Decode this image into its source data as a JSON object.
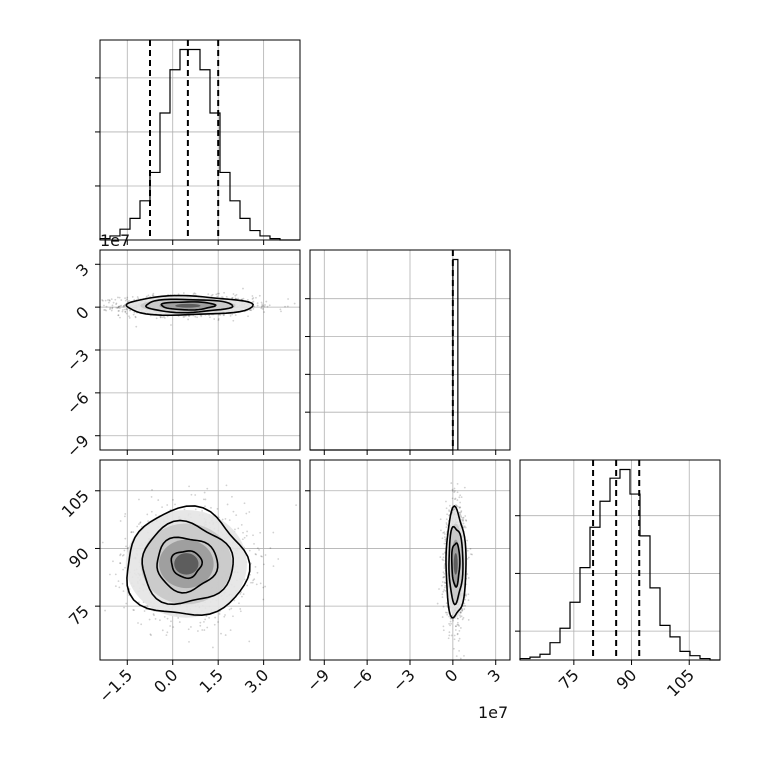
{
  "chart_data": {
    "type": "corner",
    "style": {
      "grid": true,
      "line_color": "#000000",
      "grid_color": "#b0b0b0",
      "point_color": "#000000"
    },
    "parameters": [
      {
        "index": 0,
        "range": [
          -24000000.0,
          42000000.0
        ],
        "offset_label": "1e7"
      },
      {
        "index": 1,
        "range": [
          -100000000.0,
          40000000.0
        ],
        "offset_label": "1e7"
      },
      {
        "index": 2,
        "range": [
          61,
          113
        ],
        "offset_label": ""
      }
    ],
    "panels": [
      {
        "id": "hist-0",
        "type": "histogram",
        "parameter": 0,
        "bins": [
          -24000000.0,
          -20700000.0,
          -17400000.0,
          -14100000.0,
          -10800000.0,
          -7500000.0,
          -4200000.0,
          -900000.0,
          2400000.0,
          5700000.0,
          9000000.0,
          12300000.0,
          15600000.0,
          18900000.0,
          22200000.0,
          25500000.0,
          28800000.0,
          32100000.0,
          35400000.0,
          38700000.0,
          42000000.0
        ],
        "counts": [
          1,
          3,
          8,
          16,
          29,
          50,
          94,
          126,
          141,
          141,
          126,
          94,
          50,
          29,
          16,
          7,
          3,
          1,
          0,
          0
        ],
        "quantiles": [
          -7500000.0,
          5000000.0,
          15000000.0
        ],
        "y_ticks": [
          40,
          80,
          120
        ],
        "x_ticks": [
          -15000000.0,
          0,
          15000000.0,
          30000000.0
        ],
        "y_tick_labels": [],
        "x_tick_labels": []
      },
      {
        "id": "hist-1",
        "type": "histogram",
        "parameter": 1,
        "bins": [
          -100000000.0,
          0,
          3500000.0
        ],
        "counts": [
          0,
          141
        ],
        "quantiles": [
          0.0
        ],
        "y_ticks": [
          28,
          56,
          84,
          112
        ],
        "x_ticks": [
          -90000000.0,
          -60000000.0,
          -30000000.0,
          0,
          30000000.0
        ],
        "y_tick_labels": [],
        "x_tick_labels": []
      },
      {
        "id": "hist-2",
        "type": "histogram",
        "parameter": 2,
        "bins": [
          61,
          63.6,
          66.2,
          68.8,
          71.4,
          74.0,
          76.6,
          79.2,
          81.8,
          84.4,
          87.0,
          89.6,
          92.2,
          94.8,
          97.4,
          100.0,
          102.6,
          105.2,
          107.8,
          110.4,
          113.0
        ],
        "counts": [
          1,
          2,
          4,
          12,
          22,
          40,
          64,
          92,
          110,
          126,
          132,
          115,
          86,
          50,
          24,
          16,
          6,
          3,
          1,
          0
        ],
        "quantiles": [
          80,
          86,
          92
        ],
        "y_ticks": [
          20,
          60,
          100
        ],
        "x_ticks": [
          75,
          90,
          105
        ],
        "y_tick_labels": [],
        "x_tick_labels": [
          "75",
          "90",
          "105"
        ]
      },
      {
        "id": "scatter-1-0",
        "type": "kde2d",
        "x_param": 0,
        "y_param": 1,
        "center": [
          5000000.0,
          1000000.0
        ],
        "spread": [
          11000000.0,
          3500000.0
        ],
        "contour_radii": [
          0.8,
          1.3,
          1.9
        ],
        "x_ticks": [
          -15000000.0,
          0,
          15000000.0,
          30000000.0
        ],
        "y_ticks": [
          30000000.0,
          0,
          -30000000.0,
          -60000000.0,
          -90000000.0
        ],
        "y_tick_labels": [
          "3",
          "0",
          "−3",
          "−6",
          "−9"
        ],
        "x_tick_labels": []
      },
      {
        "id": "scatter-2-0",
        "type": "kde2d",
        "x_param": 0,
        "y_param": 2,
        "center": [
          4500000.0,
          86
        ],
        "spread": [
          10000000.0,
          7
        ],
        "contour_radii": [
          0.5,
          1.0,
          1.5,
          2.0
        ],
        "x_ticks": [
          -15000000.0,
          0,
          15000000.0,
          30000000.0
        ],
        "y_ticks": [
          105,
          90,
          75
        ],
        "y_tick_labels": [
          "105",
          "90",
          "75"
        ],
        "x_tick_labels": [
          "−1.5",
          "0.0",
          "1.5",
          "3.0"
        ]
      },
      {
        "id": "scatter-2-1",
        "type": "kde2d",
        "x_param": 1,
        "y_param": 2,
        "center": [
          2000000.0,
          86
        ],
        "spread": [
          3500000.0,
          7
        ],
        "contour_radii": [
          0.8,
          1.4,
          2.0
        ],
        "x_ticks": [
          -90000000.0,
          -60000000.0,
          -30000000.0,
          0,
          30000000.0
        ],
        "y_ticks": [
          105,
          90,
          75
        ],
        "y_tick_labels": [],
        "x_tick_labels": [
          "−9",
          "−6",
          "−3",
          "0",
          "3"
        ]
      }
    ]
  }
}
